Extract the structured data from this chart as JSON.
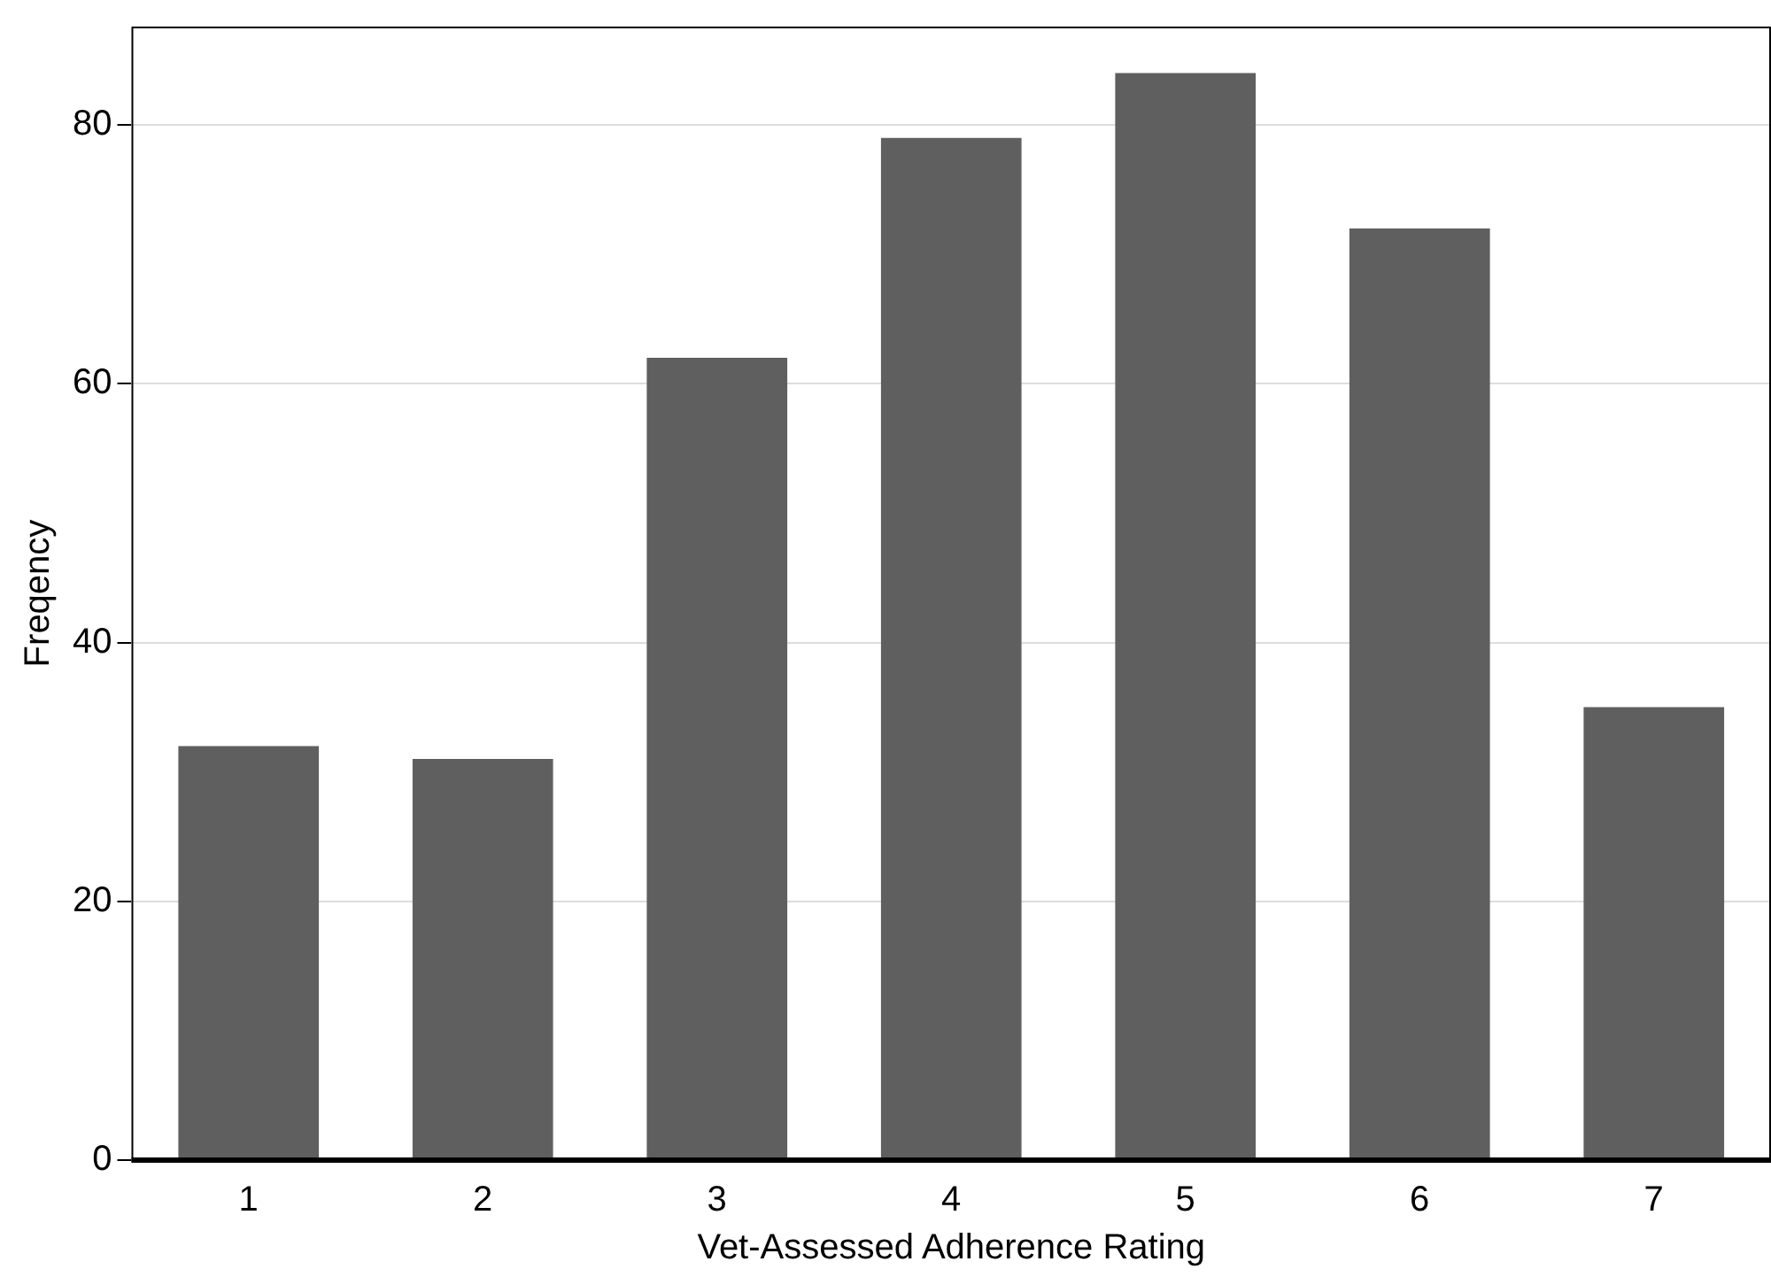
{
  "chart_data": {
    "type": "bar",
    "xlabel": "Vet-Assessed Adherence Rating",
    "ylabel": "Freqency",
    "categories": [
      "1",
      "2",
      "3",
      "4",
      "5",
      "6",
      "7"
    ],
    "values": [
      32,
      31,
      62,
      79,
      84,
      72,
      35
    ],
    "color": "#5f5f5f",
    "ylim": [
      0,
      87.6
    ],
    "yticks": [
      0,
      20,
      40,
      60,
      80
    ],
    "grid": "y",
    "legend": false
  }
}
